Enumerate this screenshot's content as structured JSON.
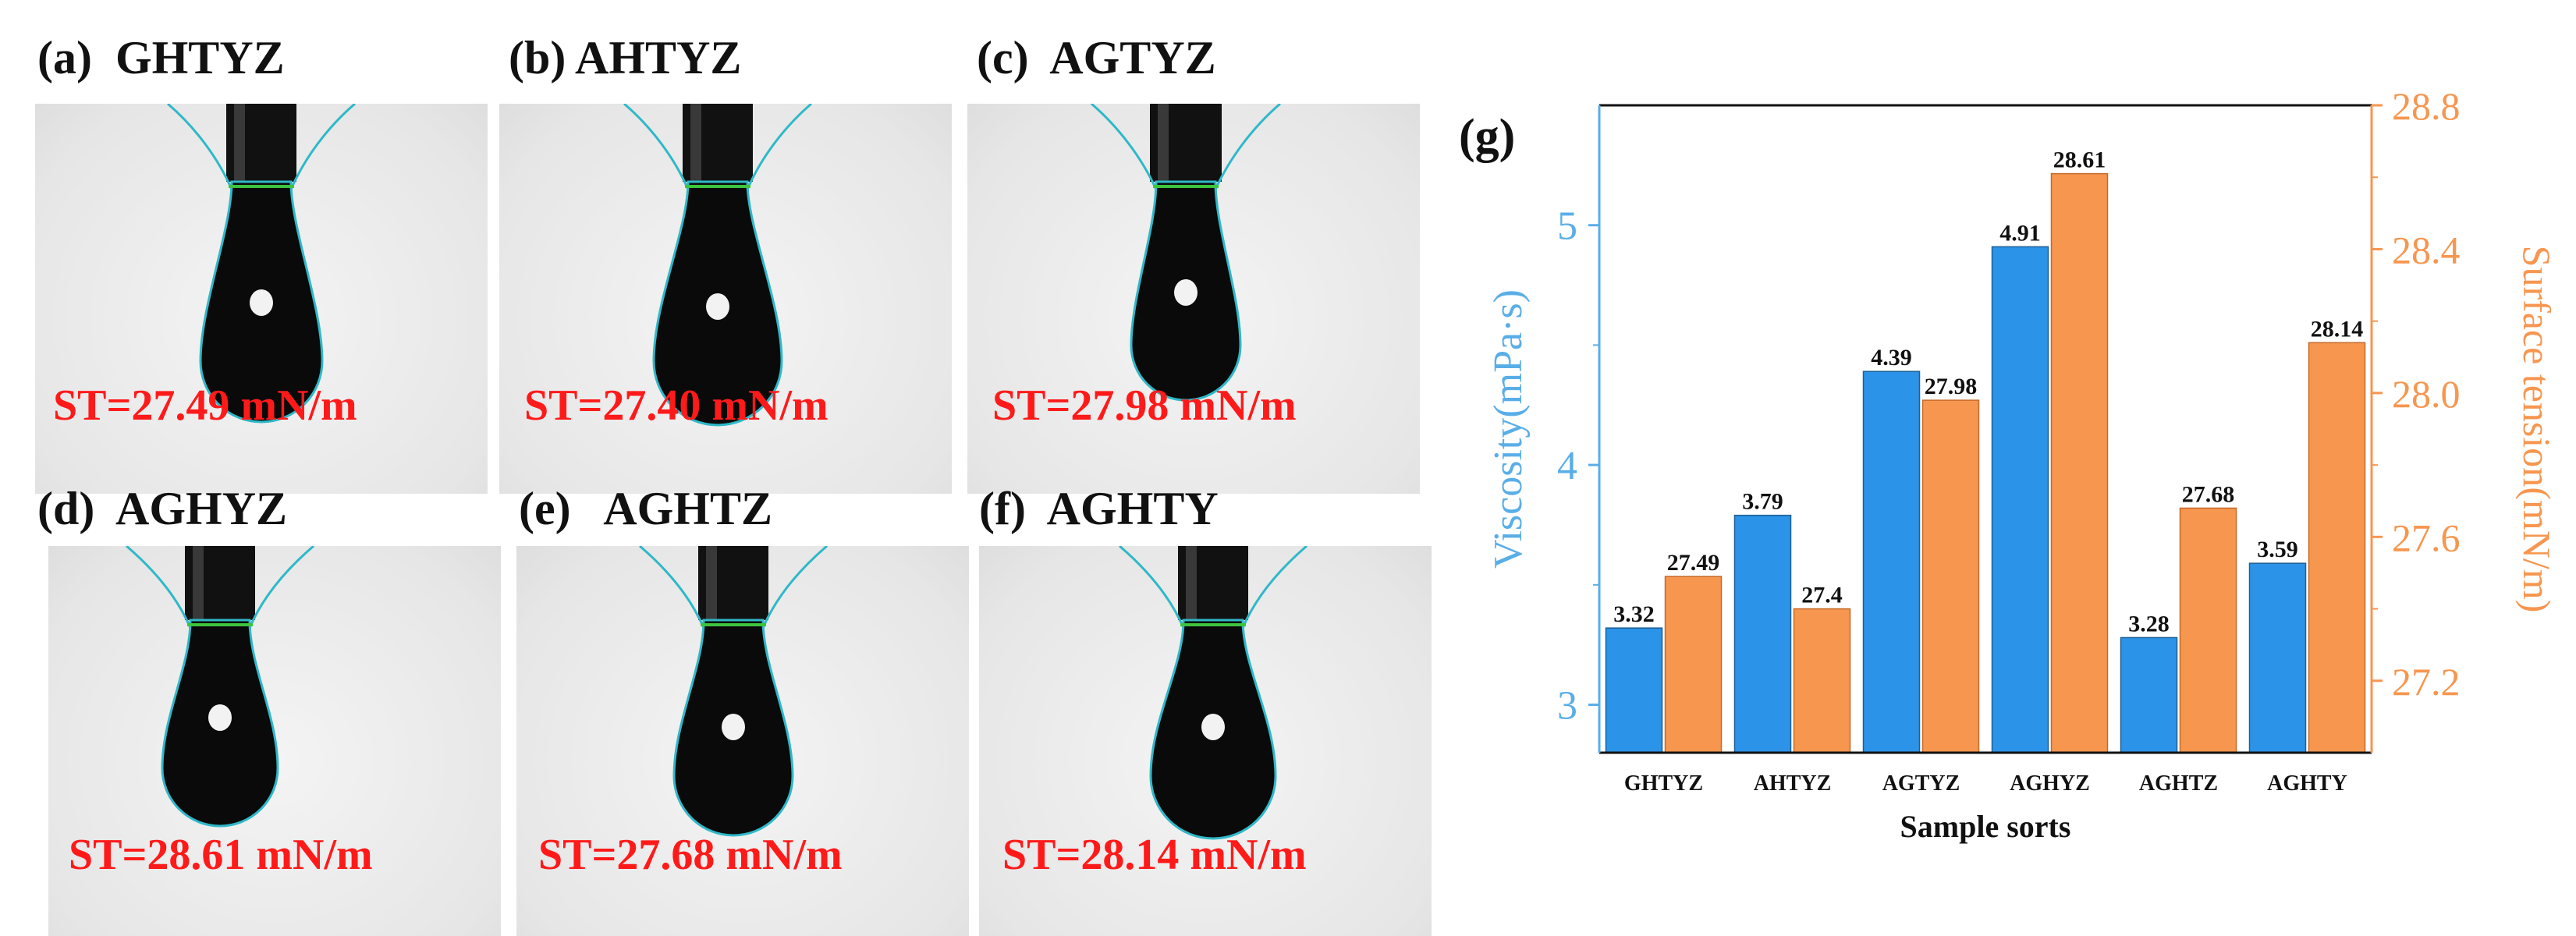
{
  "panels": [
    {
      "label": "(a)",
      "name": "GHTYZ",
      "st": "ST=27.49 mN/m"
    },
    {
      "label": "(b)",
      "name": "AHTYZ",
      "st": "ST=27.40 mN/m"
    },
    {
      "label": "(c)",
      "name": "AGTYZ",
      "st": "ST=27.98 mN/m"
    },
    {
      "label": "(d)",
      "name": "AGHYZ",
      "st": "ST=28.61 mN/m"
    },
    {
      "label": "(e)",
      "name": "AGHTZ",
      "st": "ST=27.68 mN/m"
    },
    {
      "label": "(f)",
      "name": "AGHTY",
      "st": "ST=28.14 mN/m"
    }
  ],
  "chart_data": {
    "type": "bar",
    "panel_label": "(g)",
    "categories": [
      "GHTYZ",
      "AHTYZ",
      "AGTYZ",
      "AGHYZ",
      "AGHTZ",
      "AGHTY"
    ],
    "series": [
      {
        "name": "Viscosity",
        "axis": "left",
        "color": "#2b93e8",
        "values": [
          3.32,
          3.79,
          4.39,
          4.91,
          3.28,
          3.59
        ],
        "labels": [
          "3.32",
          "3.79",
          "4.39",
          "4.91",
          "3.28",
          "3.59"
        ]
      },
      {
        "name": "Surface tension",
        "axis": "right",
        "color": "#f7964f",
        "values": [
          27.49,
          27.4,
          27.98,
          28.61,
          27.68,
          28.14
        ],
        "labels": [
          "27.49",
          "27.4",
          "27.98",
          "28.61",
          "27.68",
          "28.14"
        ]
      }
    ],
    "xlabel": "Sample sorts",
    "ylabel_left": "Viscosity(mPa·s)",
    "ylabel_right": "Surface tension(mN/m)",
    "ylim_left": [
      2.8,
      5.5
    ],
    "ylim_right": [
      27.0,
      28.8
    ],
    "yticks_left": [
      3,
      4,
      5
    ],
    "yticks_right": [
      27.2,
      27.6,
      28.0,
      28.4,
      28.8
    ],
    "yticklabels_right": [
      "27.2",
      "27.6",
      "28.0",
      "28.4",
      "28.8"
    ],
    "left_axis_color": "#5aaee8",
    "right_axis_color": "#f7964f"
  }
}
